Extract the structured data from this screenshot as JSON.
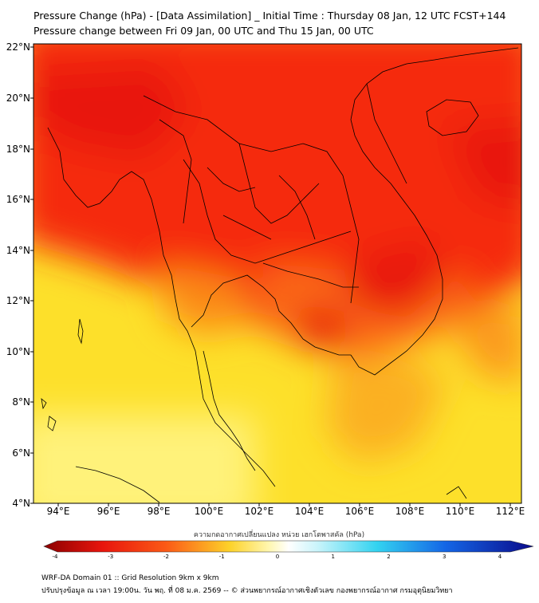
{
  "title_line1": "Pressure Change (hPa) - [Data Assimilation] _ Initial Time : Thursday 08 Jan, 12 UTC FCST+144",
  "title_line2": "Pressure change between Fri 09 Jan, 00 UTC and Thu 15 Jan, 00 UTC",
  "lat_labels": [
    "22°N",
    "20°N",
    "18°N",
    "16°N",
    "14°N",
    "12°N",
    "10°N",
    "8°N",
    "6°N",
    "4°N"
  ],
  "lon_labels": [
    "94°E",
    "96°E",
    "98°E",
    "100°E",
    "102°E",
    "104°E",
    "106°E",
    "108°E",
    "110°E",
    "112°E"
  ],
  "colorbar": {
    "title": "ความกดอากาศเปลี่ยนแปลง หน่วย เฮกโตพาสคัล (hPa)",
    "ticks": [
      "-4",
      "-3",
      "-2",
      "-1",
      "0",
      "1",
      "2",
      "3",
      "4"
    ],
    "min": -4,
    "max": 4
  },
  "footer_line1": "WRF-DA Domain 01 :: Grid Resolution 9km x 9km",
  "footer_line2": "ปรับปรุงข้อมูล ณ เวลา 19:00น. วัน พฤ. ที่ 08 ม.ค. 2569 -- © ส่วนพยากรณ์อากาศเชิงตัวเลข กองพยากรณ์อากาศ กรมอุตุนิยมวิทยา",
  "colors": {
    "deep_red": "#e8150d",
    "red": "#f52a10",
    "orange": "#fb8a18",
    "yellow": "#fde02a",
    "pale_yellow": "#fff27a",
    "coast": "#000000"
  }
}
